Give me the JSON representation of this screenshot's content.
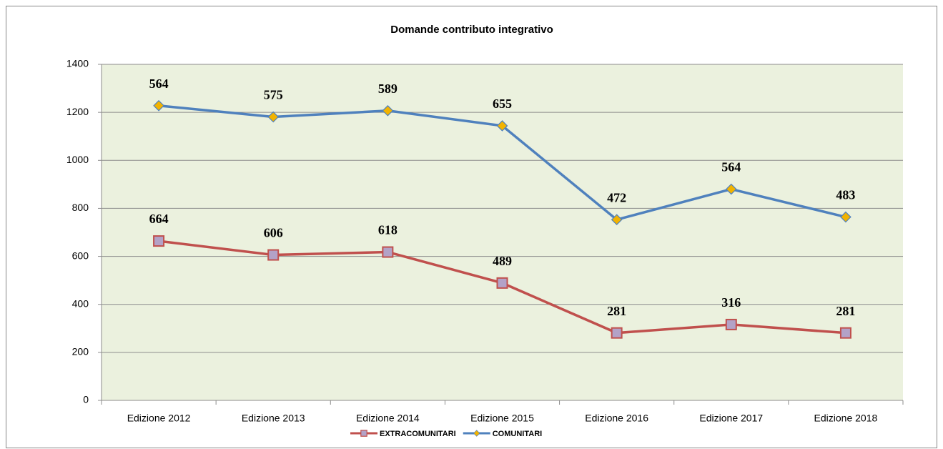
{
  "chart_data": {
    "type": "line",
    "stacked": true,
    "title": "Domande contributo integrativo",
    "categories": [
      "Edizione 2012",
      "Edizione 2013",
      "Edizione 2014",
      "Edizione 2015",
      "Edizione 2016",
      "Edizione 2017",
      "Edizione 2018"
    ],
    "series": [
      {
        "name": "EXTRACOMUNITARI",
        "color": "#c0504d",
        "marker_color": "#b3a2c7",
        "marker": "square",
        "values": [
          664,
          606,
          618,
          489,
          281,
          316,
          281
        ]
      },
      {
        "name": "COMUNITARI",
        "color": "#4f81bd",
        "marker_color": "#f2b300",
        "marker": "diamond",
        "values": [
          564,
          575,
          589,
          655,
          472,
          564,
          483
        ]
      }
    ],
    "ylim": [
      0,
      1400
    ],
    "yticks": [
      0,
      200,
      400,
      600,
      800,
      1000,
      1200,
      1400
    ],
    "grid": true,
    "legend": "bottom"
  }
}
